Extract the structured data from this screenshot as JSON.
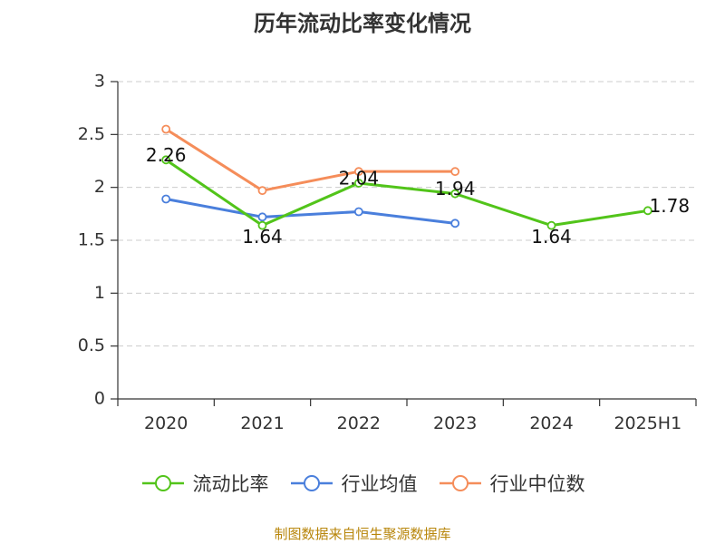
{
  "chart_data": {
    "type": "line",
    "title": "历年流动比率变化情况",
    "categories": [
      "2020",
      "2021",
      "2022",
      "2023",
      "2024",
      "2025H1"
    ],
    "ylim": [
      0,
      3
    ],
    "yticks": [
      "0",
      "0.5",
      "1",
      "1.5",
      "2",
      "2.5",
      "3"
    ],
    "grid": true,
    "legend_position": "bottom",
    "series": [
      {
        "name": "流动比率",
        "color": "#52c41a",
        "values": [
          2.26,
          1.64,
          2.04,
          1.94,
          1.64,
          1.78
        ],
        "labels": [
          "2.26",
          "1.64",
          "2.04",
          "1.94",
          "1.64",
          "1.78"
        ]
      },
      {
        "name": "行业均值",
        "color": "#4a7fdc",
        "values": [
          1.89,
          1.72,
          1.77,
          1.66,
          null,
          null
        ]
      },
      {
        "name": "行业中位数",
        "color": "#f58d5a",
        "values": [
          2.55,
          1.97,
          2.15,
          2.15,
          null,
          null
        ]
      }
    ]
  },
  "source_text": "制图数据来自恒生聚源数据库"
}
